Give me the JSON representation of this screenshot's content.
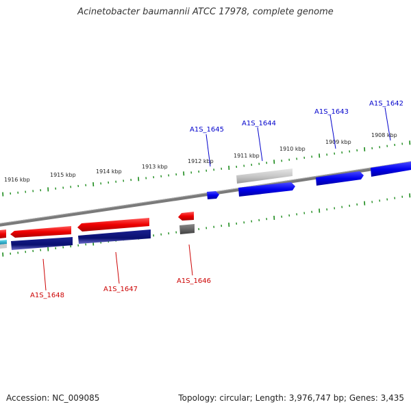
{
  "title": "Acinetobacter baumannii ATCC 17978, complete genome",
  "footer": {
    "accession": "Accession: NC_009085",
    "topology": "Topology: circular; Length: 3,976,747 bp; Genes: 3,435"
  },
  "colors": {
    "forward_cds": "#0000ee",
    "reverse_cds": "#ee0000",
    "forward_label": "#0000cc",
    "reverse_label": "#cc0000",
    "rna_forward": "#c8c8c8",
    "rna_reverse": "#666666",
    "orf_navy": "#0a1070",
    "backbone": "#808080",
    "ticks": "#1a8a1a",
    "cyan_feature": "#22aacc"
  },
  "scale_labels": [
    "1916 kbp",
    "1915 kbp",
    "1914 kbp",
    "1913 kbp",
    "1912 kbp",
    "1911 kbp",
    "1910 kbp",
    "1909 kbp",
    "1908 kbp"
  ],
  "gene_labels_forward": [
    "A1S_1645",
    "A1S_1644",
    "A1S_1643",
    "A1S_1642"
  ],
  "gene_labels_reverse": [
    "A1S_1648",
    "A1S_1647",
    "A1S_1646"
  ]
}
